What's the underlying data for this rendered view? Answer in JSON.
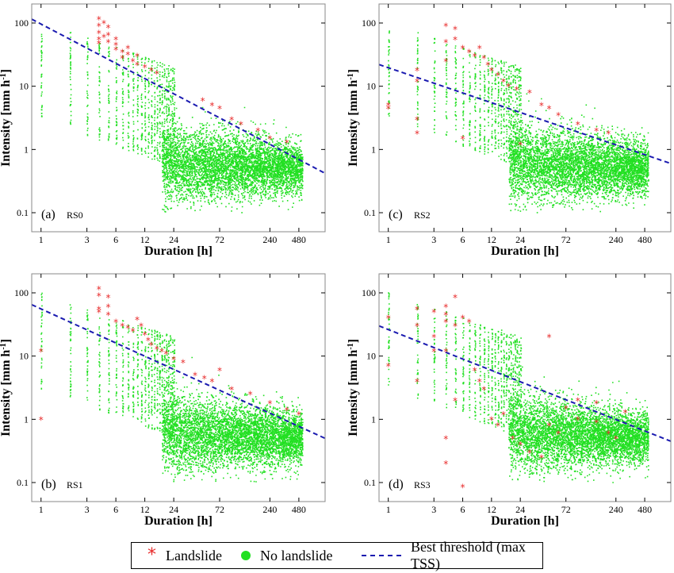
{
  "chart_data": [
    {
      "type": "scatter",
      "panel_label": "(a)",
      "panel_name": "RS0",
      "xlabel": "Duration [h]",
      "ylabel_main": "Intensity [mm h",
      "ylabel_sup": "-1",
      "ylabel_end": "]",
      "x_scale": "log",
      "y_scale": "log",
      "xlim": [
        0.8,
        900
      ],
      "ylim": [
        0.05,
        200
      ],
      "x_ticks": [
        1,
        3,
        6,
        12,
        24,
        72,
        240,
        480
      ],
      "x_tick_labels": [
        "1",
        "3",
        "6",
        "12",
        "24",
        "72",
        "240",
        "480"
      ],
      "y_ticks": [
        0.1,
        1,
        10,
        100
      ],
      "y_tick_labels": [
        "0.1",
        "1",
        "10",
        "100"
      ],
      "threshold": {
        "points": [
          [
            0.8,
            115
          ],
          [
            900,
            0.42
          ]
        ]
      },
      "landslides": [
        [
          4,
          115
        ],
        [
          4,
          90
        ],
        [
          4,
          70
        ],
        [
          4,
          55
        ],
        [
          4,
          48
        ],
        [
          4.5,
          100
        ],
        [
          4.5,
          60
        ],
        [
          5,
          85
        ],
        [
          5,
          65
        ],
        [
          5,
          50
        ],
        [
          6,
          45
        ],
        [
          6,
          38
        ],
        [
          7,
          35
        ],
        [
          7,
          28
        ],
        [
          8,
          32
        ],
        [
          9,
          25
        ],
        [
          10,
          22
        ],
        [
          12,
          20
        ],
        [
          14,
          18
        ],
        [
          16,
          16
        ],
        [
          6,
          55
        ],
        [
          8,
          40
        ],
        [
          10,
          30
        ],
        [
          48,
          6
        ],
        [
          60,
          5
        ],
        [
          72,
          4.5
        ],
        [
          96,
          3
        ],
        [
          120,
          2.5
        ],
        [
          180,
          2
        ],
        [
          240,
          1.5
        ],
        [
          360,
          1.3
        ]
      ]
    },
    {
      "type": "scatter",
      "panel_label": "(c)",
      "panel_name": "RS2",
      "xlabel": "Duration [h]",
      "ylabel_main": "Intensity [mm h",
      "ylabel_sup": "-1",
      "ylabel_end": "]",
      "x_scale": "log",
      "y_scale": "log",
      "xlim": [
        0.8,
        900
      ],
      "ylim": [
        0.05,
        200
      ],
      "x_ticks": [
        1,
        3,
        6,
        12,
        24,
        72,
        240,
        480
      ],
      "x_tick_labels": [
        "1",
        "3",
        "6",
        "12",
        "24",
        "72",
        "240",
        "480"
      ],
      "y_ticks": [
        0.1,
        1,
        10,
        100
      ],
      "y_tick_labels": [
        "0.1",
        "1",
        "10",
        "100"
      ],
      "threshold": {
        "points": [
          [
            0.8,
            22
          ],
          [
            900,
            0.6
          ]
        ]
      },
      "landslides": [
        [
          1,
          5
        ],
        [
          1,
          4.5
        ],
        [
          2,
          18
        ],
        [
          2,
          12
        ],
        [
          2,
          3
        ],
        [
          2,
          1.8
        ],
        [
          4,
          90
        ],
        [
          4,
          50
        ],
        [
          4,
          25
        ],
        [
          5,
          80
        ],
        [
          5,
          55
        ],
        [
          6,
          40
        ],
        [
          6,
          1.5
        ],
        [
          7,
          35
        ],
        [
          8,
          30
        ],
        [
          9,
          40
        ],
        [
          10,
          28
        ],
        [
          11,
          22
        ],
        [
          12,
          18
        ],
        [
          14,
          15
        ],
        [
          16,
          12
        ],
        [
          18,
          10
        ],
        [
          22,
          9
        ],
        [
          24,
          1.2
        ],
        [
          30,
          8
        ],
        [
          40,
          5
        ],
        [
          48,
          4.5
        ],
        [
          60,
          3.5
        ],
        [
          96,
          2.5
        ],
        [
          150,
          2
        ],
        [
          200,
          1.8
        ]
      ]
    },
    {
      "type": "scatter",
      "panel_label": "(b)",
      "panel_name": "RS1",
      "xlabel": "Duration [h]",
      "ylabel_main": "Intensity [mm h",
      "ylabel_sup": "-1",
      "ylabel_end": "]",
      "x_scale": "log",
      "y_scale": "log",
      "xlim": [
        0.8,
        900
      ],
      "ylim": [
        0.05,
        200
      ],
      "x_ticks": [
        1,
        3,
        6,
        12,
        24,
        72,
        240,
        480
      ],
      "x_tick_labels": [
        "1",
        "3",
        "6",
        "12",
        "24",
        "72",
        "240",
        "480"
      ],
      "y_ticks": [
        0.1,
        1,
        10,
        100
      ],
      "y_tick_labels": [
        "0.1",
        "1",
        "10",
        "100"
      ],
      "threshold": {
        "points": [
          [
            0.8,
            65
          ],
          [
            900,
            0.5
          ]
        ]
      },
      "landslides": [
        [
          1,
          12
        ],
        [
          1,
          1
        ],
        [
          4,
          115
        ],
        [
          4,
          90
        ],
        [
          4,
          55
        ],
        [
          4,
          50
        ],
        [
          5,
          85
        ],
        [
          5,
          60
        ],
        [
          5,
          45
        ],
        [
          6,
          35
        ],
        [
          7,
          30
        ],
        [
          8,
          28
        ],
        [
          9,
          25
        ],
        [
          10,
          38
        ],
        [
          11,
          30
        ],
        [
          12,
          22
        ],
        [
          13,
          18
        ],
        [
          14,
          15
        ],
        [
          16,
          13
        ],
        [
          18,
          12
        ],
        [
          20,
          11
        ],
        [
          24,
          9
        ],
        [
          30,
          8
        ],
        [
          40,
          5
        ],
        [
          50,
          4.5
        ],
        [
          60,
          4
        ],
        [
          72,
          6
        ],
        [
          96,
          3
        ],
        [
          150,
          2.5
        ],
        [
          240,
          1.8
        ],
        [
          360,
          1.4
        ],
        [
          480,
          1.2
        ]
      ]
    },
    {
      "type": "scatter",
      "panel_label": "(d)",
      "panel_name": "RS3",
      "xlabel": "Duration [h]",
      "ylabel_main": "Intensity [mm h",
      "ylabel_sup": "-1",
      "ylabel_end": "]",
      "x_scale": "log",
      "y_scale": "log",
      "xlim": [
        0.8,
        900
      ],
      "ylim": [
        0.05,
        200
      ],
      "x_ticks": [
        1,
        3,
        6,
        12,
        24,
        72,
        240,
        480
      ],
      "x_tick_labels": [
        "1",
        "3",
        "6",
        "12",
        "24",
        "72",
        "240",
        "480"
      ],
      "y_ticks": [
        0.1,
        1,
        10,
        100
      ],
      "y_tick_labels": [
        "0.1",
        "1",
        "10",
        "100"
      ],
      "threshold": {
        "points": [
          [
            0.8,
            30
          ],
          [
            900,
            0.45
          ]
        ]
      },
      "landslides": [
        [
          1,
          40
        ],
        [
          1,
          7
        ],
        [
          2,
          55
        ],
        [
          2,
          30
        ],
        [
          2,
          4
        ],
        [
          3,
          50
        ],
        [
          3,
          20
        ],
        [
          3,
          12
        ],
        [
          4,
          60
        ],
        [
          4,
          45
        ],
        [
          4,
          35
        ],
        [
          4,
          12
        ],
        [
          4,
          0.5
        ],
        [
          4,
          0.2
        ],
        [
          5,
          85
        ],
        [
          5,
          30
        ],
        [
          5,
          2
        ],
        [
          6,
          40
        ],
        [
          6,
          0.085
        ],
        [
          7,
          35
        ],
        [
          8,
          6
        ],
        [
          9,
          4
        ],
        [
          10,
          3
        ],
        [
          12,
          1
        ],
        [
          14,
          0.8
        ],
        [
          16,
          1.2
        ],
        [
          20,
          0.5
        ],
        [
          24,
          0.4
        ],
        [
          30,
          0.3
        ],
        [
          40,
          0.25
        ],
        [
          48,
          0.8
        ],
        [
          60,
          0.6
        ],
        [
          72,
          1.5
        ],
        [
          96,
          1
        ],
        [
          150,
          0.9
        ],
        [
          200,
          0.6
        ],
        [
          240,
          0.5
        ],
        [
          48,
          20
        ],
        [
          96,
          2
        ],
        [
          150,
          1.8
        ],
        [
          300,
          1.3
        ]
      ]
    }
  ],
  "legend": {
    "landslide": "Landslide",
    "no_landslide": "No landslide",
    "threshold": "Best threshold (max TSS)"
  },
  "colors": {
    "landslide": "#e82a2a",
    "no_landslide": "#22e022",
    "threshold": "#1a1ab0"
  }
}
